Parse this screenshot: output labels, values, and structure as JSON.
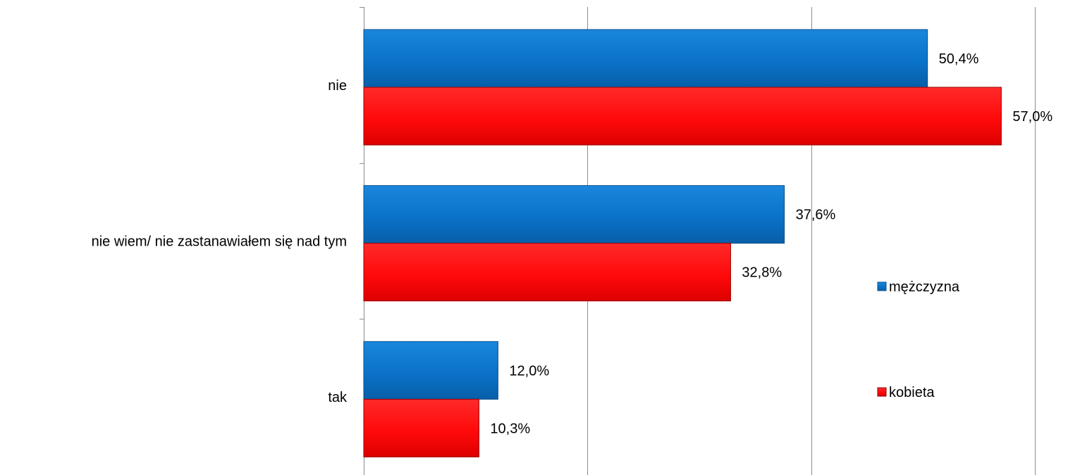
{
  "chart_data": {
    "type": "bar",
    "orientation": "horizontal",
    "categories": [
      "nie",
      "nie wiem/ nie zastanawiałem się nad tym",
      "tak"
    ],
    "series": [
      {
        "name": "mężczyzna",
        "color": "#0a72c9",
        "values": [
          50.4,
          37.6,
          12.0
        ],
        "labels": [
          "50,4%",
          "37,6%",
          "12,0%"
        ]
      },
      {
        "name": "kobieta",
        "color": "#ff0a0a",
        "values": [
          57.0,
          32.8,
          10.3
        ],
        "labels": [
          "57,0%",
          "32,8%",
          "10,3%"
        ]
      }
    ],
    "xlim": [
      0,
      60
    ],
    "grid": true,
    "legend_position": "right",
    "title": "",
    "xlabel": "",
    "ylabel": ""
  }
}
